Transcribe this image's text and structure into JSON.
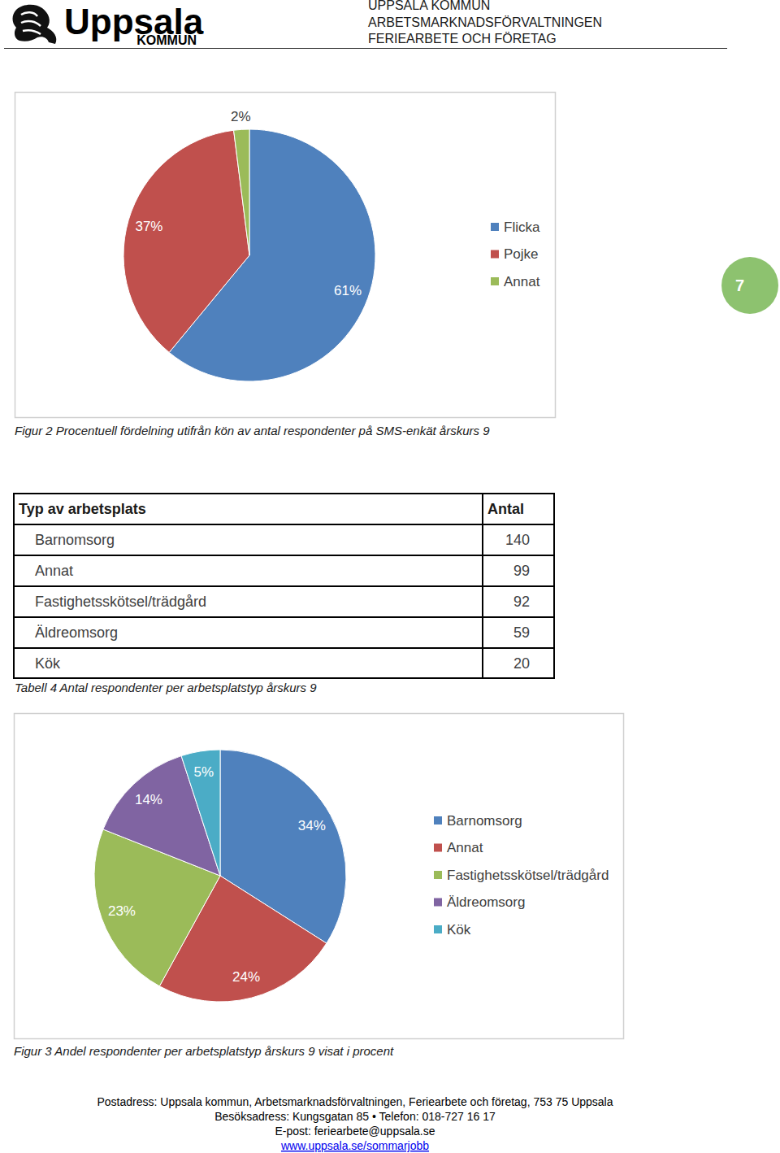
{
  "header": {
    "logo": [
      "Uppsala",
      "KOMMUN"
    ],
    "lines": [
      "UPPSALA KOMMUN",
      "ARBETSMARKNADSFÖRVALTNINGEN",
      "FERIEARBETE OCH FÖRETAG"
    ]
  },
  "page_number": 7,
  "chart_data": [
    {
      "type": "pie",
      "title": "Figur 2 Procentuell fördelning utifrån kön av antal respondenter på SMS-enkät årskurs 9",
      "categories": [
        "Flicka",
        "Pojke",
        "Annat"
      ],
      "values": [
        61,
        37,
        2
      ],
      "value_labels": [
        "61%",
        "37%",
        "2%"
      ],
      "colors": [
        "#4f81bd",
        "#c0504d",
        "#9bbb59"
      ],
      "data_labels": true,
      "legend": "right"
    },
    {
      "type": "pie",
      "title": "Figur 3 Andel respondenter per arbetsplatstyp årskurs 9 visat i procent",
      "categories": [
        "Barnomsorg",
        "Annat",
        "Fastighetsskötsel/trädgård",
        "Äldreomsorg",
        "Kök"
      ],
      "values": [
        34,
        24,
        23,
        14,
        5
      ],
      "value_labels": [
        "34%",
        "24%",
        "23%",
        "14%",
        "5%"
      ],
      "colors": [
        "#4f81bd",
        "#c0504d",
        "#9bbb59",
        "#8064a2",
        "#4bacc6"
      ],
      "data_labels": true,
      "legend": "right"
    }
  ],
  "table": {
    "caption": "Tabell 4 Antal respondenter per arbetsplatstyp årskurs 9",
    "header": [
      "Typ av arbetsplats",
      "Antal"
    ],
    "rows": [
      [
        "Barnomsorg",
        140
      ],
      [
        "Annat",
        99
      ],
      [
        "Fastighetsskötsel/trädgård",
        92
      ],
      [
        "Äldreomsorg",
        59
      ],
      [
        "Kök",
        20
      ]
    ]
  },
  "footer": {
    "lines": [
      "Postadress: Uppsala kommun, Arbetsmarknadsförvaltningen, Feriearbete och företag, 753 75 Uppsala",
      "Besöksadress: Kungsgatan 85 • Telefon: 018-727 16 17",
      "E-post: feriearbete@uppsala.se"
    ],
    "link": "www.uppsala.se/sommarjobb"
  }
}
